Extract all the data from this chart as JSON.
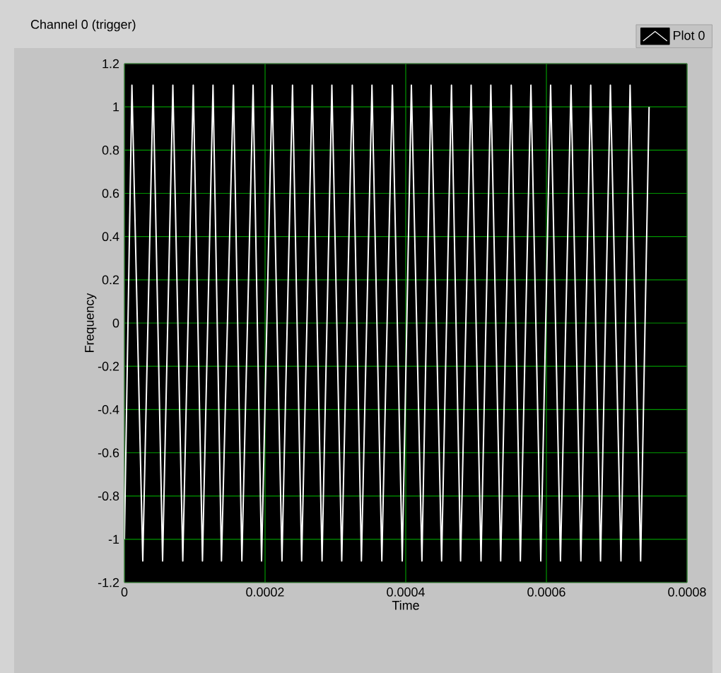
{
  "chart_data": {
    "type": "line",
    "title": "Channel 0 (trigger)",
    "xlabel": "Time",
    "ylabel": "Frequency",
    "series": [
      {
        "name": "Plot 0",
        "color": "#ffffff",
        "x": [
          0,
          1.07e-05,
          2.61e-05,
          4.08e-05,
          5.43e-05,
          6.89e-05,
          8.3e-05,
          9.79e-05,
          0.000111,
          0.000126,
          0.000138,
          0.000155,
          0.000167,
          0.000183,
          0.000195,
          0.00021,
          0.000224,
          0.000239,
          0.000252,
          0.000267,
          0.000281,
          0.000295,
          0.000309,
          0.000324,
          0.000337,
          0.000352,
          0.000366,
          0.000381,
          0.000395,
          0.000408,
          0.000423,
          0.000436,
          0.000451,
          0.000465,
          0.000478,
          0.000493,
          0.000507,
          0.000521,
          0.000535,
          0.00055,
          0.000563,
          0.000578,
          0.000592,
          0.000606,
          0.00062,
          0.000635,
          0.000649,
          0.000663,
          0.000677,
          0.000691,
          0.000706,
          0.000719,
          0.000734,
          0.000746
        ],
        "values": [
          -1.0,
          1.1,
          -1.1,
          1.1,
          -1.1,
          1.1,
          -1.1,
          1.1,
          -1.1,
          1.1,
          -1.1,
          1.1,
          -1.1,
          1.1,
          -1.1,
          1.1,
          -1.1,
          1.1,
          -1.1,
          1.1,
          -1.1,
          1.1,
          -1.1,
          1.1,
          -1.1,
          1.1,
          -1.1,
          1.1,
          -1.1,
          1.1,
          -1.1,
          1.1,
          -1.1,
          1.1,
          -1.1,
          1.1,
          -1.1,
          1.1,
          -1.1,
          1.1,
          -1.1,
          1.1,
          -1.1,
          1.1,
          -1.1,
          1.1,
          -1.1,
          1.1,
          -1.1,
          1.1,
          -1.1,
          1.1,
          -1.1,
          1.0
        ]
      }
    ],
    "xlim": [
      0,
      0.0008
    ],
    "ylim": [
      -1.2,
      1.2
    ],
    "xticks": [
      0,
      0.0002,
      0.0004,
      0.0006,
      0.0008
    ],
    "yticks": [
      1.2,
      1,
      0.8,
      0.6,
      0.4,
      0.2,
      0,
      -0.2,
      -0.4,
      -0.6,
      -0.8,
      -1,
      -1.2
    ],
    "grid": true,
    "legend": "top right"
  }
}
